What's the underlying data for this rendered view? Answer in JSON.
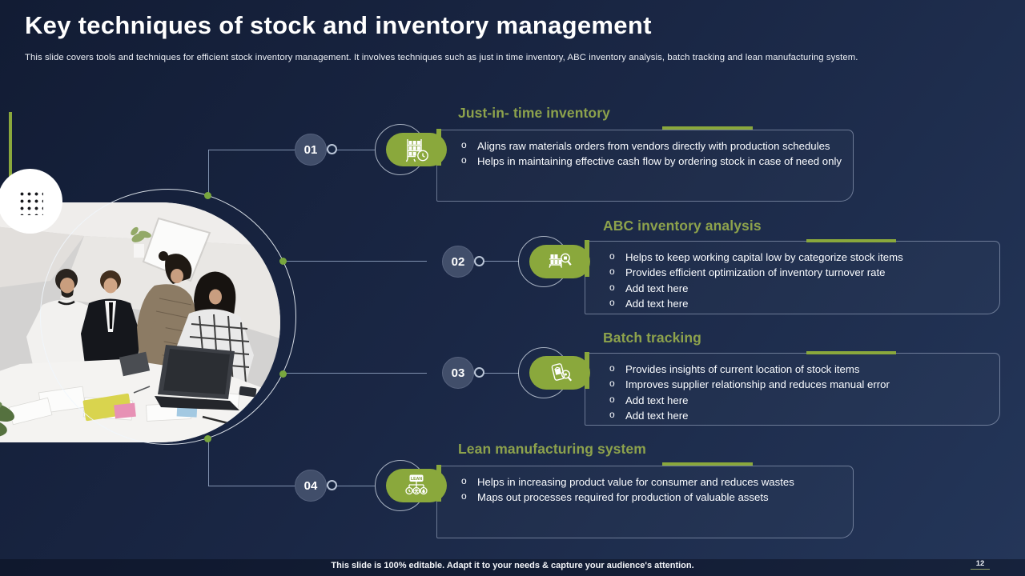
{
  "slide": {
    "title": "Key techniques of stock and inventory management",
    "subtitle": "This slide covers tools and techniques for efficient stock inventory management. It involves techniques such as just in time inventory, ABC inventory analysis, batch tracking and lean manufacturing system.",
    "footer_note": "This slide is 100% editable. Adapt it to your needs & capture your audience's attention.",
    "page_number": "12"
  },
  "bullet_char": "o",
  "colors": {
    "bg_start": "#121c34",
    "bg_mid": "#1a2745",
    "bg_end": "#243659",
    "accent_green": "#8aa83c",
    "heading_green": "#8da24c",
    "badge_fill": "#414e6a",
    "connector": "#93a5c2",
    "node_green": "#79a73e",
    "box_border": "#9dabc4",
    "text_white": "#fafcff"
  },
  "items": [
    {
      "number": "01",
      "icon": "storage-rack-clock-icon",
      "title": "Just-in- time inventory",
      "bullets": [
        "Aligns raw materials orders from vendors directly with production schedules",
        "Helps in maintaining effective cash flow by ordering stock in case of need only"
      ]
    },
    {
      "number": "02",
      "icon": "inventory-shelf-magnifier-icon",
      "title": "ABC inventory analysis",
      "bullets": [
        "Helps to keep working capital low by categorize stock items",
        "Provides efficient optimization of inventory turnover rate",
        "Add text here",
        "Add text here"
      ]
    },
    {
      "number": "03",
      "icon": "batch-scan-magnifier-icon",
      "title": "Batch tracking",
      "bullets": [
        "Provides insights of current location of stock items",
        "Improves supplier relationship and reduces manual error",
        "Add text here",
        "Add text here"
      ]
    },
    {
      "number": "04",
      "icon": "lean-process-icon",
      "title": "Lean manufacturing system",
      "icon_label": "LEAN",
      "bullets": [
        "Helps in increasing product value for consumer and reduces wastes",
        "Maps out processes required for production of valuable assets"
      ]
    }
  ]
}
